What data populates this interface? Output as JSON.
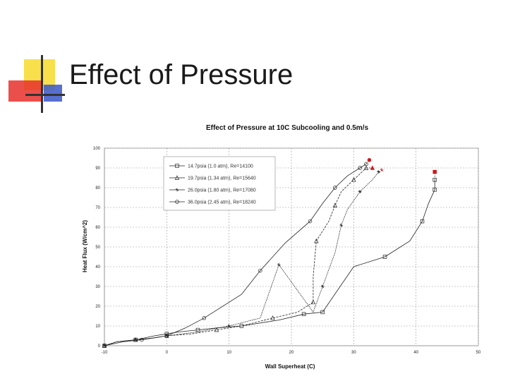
{
  "slide": {
    "title": "Effect of Pressure"
  },
  "colors": {
    "accent_yellow": "#f7e04b",
    "accent_red": "#e8302c",
    "accent_blue": "#3a56c8",
    "line": "#222222",
    "grid": "#9a9a9a",
    "marker_red": "#d0161b"
  },
  "chart_data": {
    "type": "line",
    "title": "Effect of Pressure at 10C Subcooling and 0.5m/s",
    "xlabel": "Wall Superheat (C)",
    "ylabel": "Heat Flux (W/cm^2)",
    "xlim": [
      -10,
      50
    ],
    "ylim": [
      0,
      100
    ],
    "xticks": [
      -10,
      0,
      10,
      20,
      30,
      40,
      50
    ],
    "yticks": [
      0,
      10,
      20,
      30,
      40,
      50,
      60,
      70,
      80,
      90,
      100
    ],
    "legend_position": "top-left",
    "series": [
      {
        "name": "14.7psia (1.0 atm), Re=14100",
        "marker": "square",
        "x": [
          -10,
          -8,
          -5,
          -2,
          0,
          2,
          5,
          8,
          12,
          18,
          22,
          25,
          25,
          30,
          35,
          39,
          41,
          42,
          43,
          43
        ],
        "y": [
          0,
          2,
          3,
          5,
          6,
          7,
          8,
          9,
          10,
          13,
          16,
          17,
          17,
          40,
          45,
          53,
          63,
          72,
          79,
          84
        ],
        "end": {
          "x": 43,
          "y": 88
        }
      },
      {
        "name": "19.7psia (1.34 atm), Re=15640",
        "marker": "triangle",
        "x": [
          -10,
          -8,
          -5,
          -2,
          0,
          4,
          8,
          12,
          17,
          21,
          23.5,
          23.5,
          24,
          26,
          27,
          28,
          30,
          32
        ],
        "y": [
          0,
          2,
          3,
          4,
          5,
          6,
          8,
          10,
          14,
          17,
          22,
          35,
          53,
          63,
          71,
          78,
          84,
          90
        ],
        "end": {
          "x": 33,
          "y": 90
        }
      },
      {
        "name": "26.0psia (1.80 atm), Re=17080",
        "marker": "star",
        "x": [
          -10,
          -8,
          -5,
          -2,
          0,
          5,
          10,
          15,
          18,
          23.5,
          25,
          27,
          28,
          29,
          31,
          33,
          34
        ],
        "y": [
          0,
          2,
          3,
          4,
          5,
          7,
          10,
          14,
          41,
          17,
          30,
          47,
          61,
          69,
          78,
          84,
          88
        ],
        "end": {
          "x": 34.5,
          "y": 89
        }
      },
      {
        "name": "36.0psia (2.45 atm), Re=18240",
        "marker": "circle",
        "x": [
          -10,
          -7,
          -4,
          -2,
          0,
          3,
          6,
          12,
          15,
          19,
          23,
          25,
          27,
          29,
          31,
          32
        ],
        "y": [
          0,
          2,
          3,
          4,
          5,
          9,
          14,
          26,
          38,
          52,
          63,
          72,
          80,
          86,
          90,
          92
        ],
        "end": {
          "x": 32.5,
          "y": 94
        }
      }
    ]
  }
}
